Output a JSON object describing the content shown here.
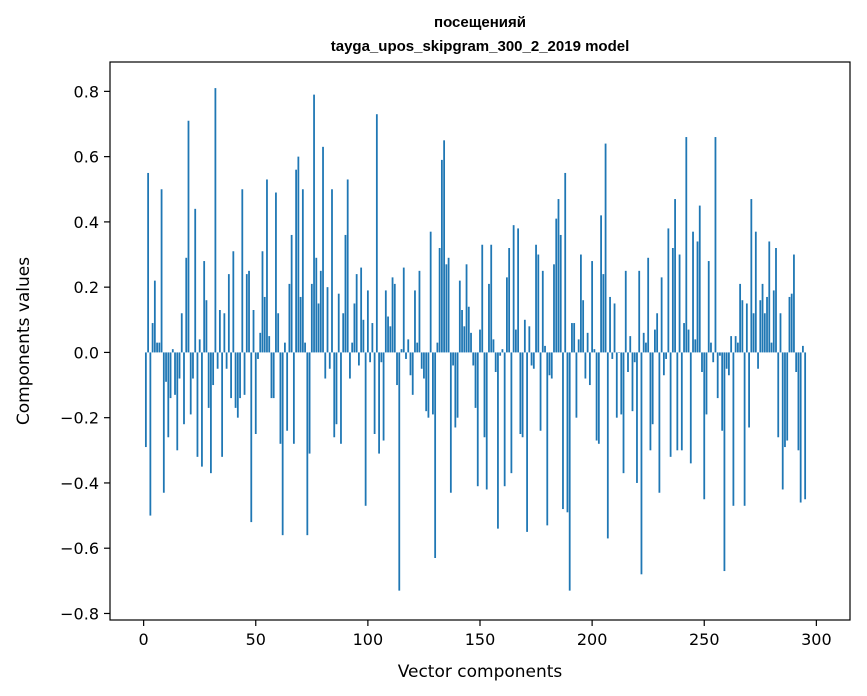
{
  "chart_data": {
    "type": "bar",
    "title_line1": "посещенияй",
    "title_line2": "tayga_upos_skipgram_300_2_2019 model",
    "xlabel": "Vector components",
    "ylabel": "Components values",
    "xlim": [
      -15,
      315
    ],
    "ylim": [
      -0.82,
      0.89
    ],
    "xticks": [
      0,
      50,
      100,
      150,
      200,
      250,
      300
    ],
    "xtick_labels": [
      "0",
      "50",
      "100",
      "150",
      "200",
      "250",
      "300"
    ],
    "yticks": [
      -0.8,
      -0.6,
      -0.4,
      -0.2,
      0.0,
      0.2,
      0.4,
      0.6,
      0.8
    ],
    "ytick_labels": [
      "−0.8",
      "−0.6",
      "−0.4",
      "−0.2",
      "0.0",
      "0.2",
      "0.4",
      "0.6",
      "0.8"
    ],
    "bar_color": "#1f77b4",
    "grid": false,
    "values": [
      -0.29,
      0.55,
      -0.5,
      0.09,
      0.22,
      0.03,
      0.03,
      0.5,
      -0.43,
      -0.09,
      -0.26,
      -0.14,
      0.01,
      -0.13,
      -0.3,
      -0.08,
      0.12,
      -0.22,
      0.29,
      0.71,
      -0.19,
      -0.08,
      0.44,
      -0.32,
      0.04,
      -0.35,
      0.28,
      0.16,
      -0.17,
      -0.37,
      -0.1,
      0.81,
      -0.05,
      0.13,
      -0.32,
      0.12,
      -0.05,
      0.24,
      -0.14,
      0.31,
      -0.17,
      -0.2,
      -0.14,
      0.5,
      -0.13,
      0.24,
      0.25,
      -0.52,
      0.13,
      -0.25,
      -0.02,
      0.06,
      0.31,
      0.17,
      0.53,
      0.05,
      -0.14,
      -0.14,
      0.49,
      0.12,
      -0.28,
      -0.56,
      0.03,
      -0.24,
      0.21,
      0.36,
      -0.28,
      0.56,
      0.6,
      0.17,
      0.5,
      0.03,
      -0.56,
      -0.31,
      0.21,
      0.79,
      0.29,
      0.15,
      0.25,
      0.63,
      -0.08,
      0.2,
      -0.05,
      0.5,
      -0.26,
      -0.22,
      0.18,
      -0.28,
      0.12,
      0.36,
      0.53,
      -0.08,
      0.03,
      0.15,
      0.24,
      -0.04,
      0.26,
      0.1,
      -0.47,
      0.19,
      -0.03,
      0.09,
      -0.25,
      0.73,
      -0.31,
      -0.03,
      -0.27,
      0.19,
      0.11,
      0.08,
      0.23,
      0.21,
      -0.1,
      -0.73,
      0.01,
      0.26,
      -0.02,
      0.04,
      -0.07,
      -0.13,
      0.19,
      0.03,
      0.25,
      -0.05,
      -0.08,
      -0.18,
      -0.2,
      0.37,
      -0.19,
      -0.63,
      0.03,
      0.32,
      0.59,
      0.65,
      0.27,
      0.29,
      -0.43,
      -0.04,
      -0.23,
      -0.2,
      0.22,
      0.13,
      0.08,
      0.27,
      0.14,
      0.06,
      -0.04,
      -0.17,
      -0.41,
      0.07,
      0.33,
      -0.26,
      -0.42,
      0.21,
      0.33,
      0.04,
      -0.06,
      -0.54,
      -0.01,
      0.01,
      -0.41,
      0.23,
      0.32,
      -0.37,
      0.39,
      0.07,
      0.38,
      -0.25,
      -0.26,
      0.1,
      -0.55,
      0.08,
      -0.04,
      -0.05,
      0.33,
      0.3,
      -0.24,
      0.25,
      0.02,
      -0.53,
      -0.07,
      -0.08,
      0.27,
      0.41,
      0.47,
      0.36,
      -0.48,
      0.55,
      -0.49,
      -0.73,
      0.09,
      0.09,
      -0.2,
      0.04,
      0.3,
      0.16,
      -0.08,
      0.06,
      -0.1,
      0.28,
      0.01,
      -0.27,
      -0.28,
      0.42,
      0.24,
      0.64,
      -0.57,
      0.17,
      -0.02,
      0.15,
      -0.2,
      0.0,
      -0.19,
      -0.37,
      0.25,
      -0.06,
      0.05,
      -0.18,
      -0.03,
      -0.4,
      0.25,
      -0.68,
      0.06,
      0.03,
      0.29,
      -0.3,
      -0.22,
      0.07,
      0.12,
      -0.43,
      0.23,
      -0.07,
      -0.02,
      0.38,
      -0.32,
      0.32,
      0.47,
      -0.3,
      0.3,
      -0.3,
      0.09,
      0.66,
      0.07,
      -0.34,
      0.37,
      0.04,
      0.34,
      0.45,
      -0.06,
      -0.45,
      -0.19,
      0.28,
      0.03,
      -0.03,
      0.66,
      -0.14,
      -0.01,
      -0.24,
      -0.67,
      -0.05,
      -0.07,
      0.05,
      -0.47,
      0.05,
      0.03,
      0.21,
      0.16,
      -0.47,
      0.15,
      -0.23,
      0.47,
      0.12,
      0.37,
      -0.05,
      0.16,
      0.21,
      0.12,
      0.17,
      0.34,
      0.03,
      0.19,
      0.32,
      -0.26,
      0.12,
      -0.42,
      -0.29,
      -0.27,
      0.17,
      0.18,
      0.3,
      -0.06,
      -0.3,
      -0.46,
      0.02,
      -0.45
    ]
  }
}
